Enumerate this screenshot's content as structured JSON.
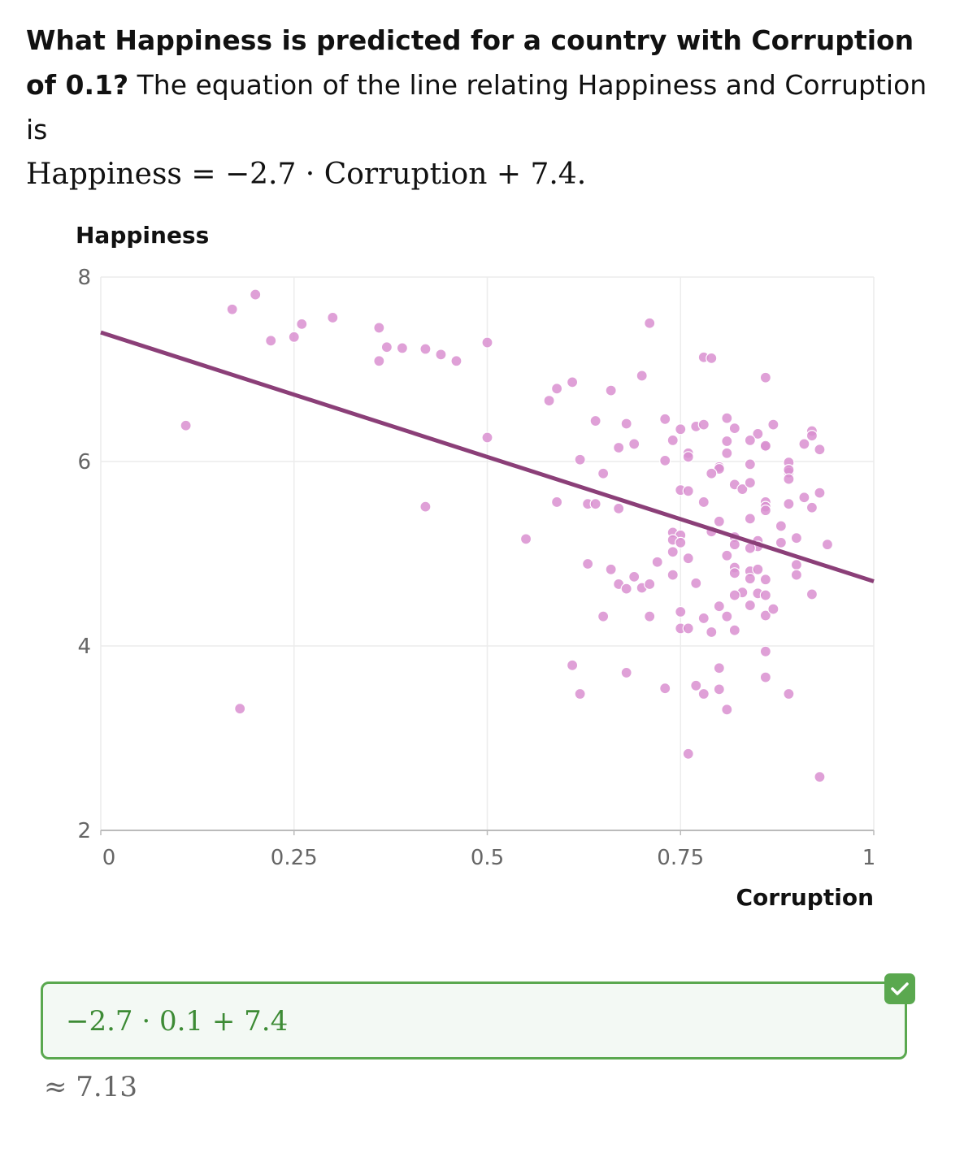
{
  "question": {
    "bold": "What Happiness is predicted for a country with Corruption of 0.1?",
    "text": " The equation of the line relating Happiness and Corruption is",
    "equation": "Happiness = −2.7 · Corruption + 7.4."
  },
  "answer": {
    "expression": "−2.7 · 0.1 + 7.4",
    "result": "≈ 7.13",
    "status": "correct",
    "status_icon": "check-icon"
  },
  "colors": {
    "points": "#d98fd0",
    "line": "#8b3f78",
    "correct": "#5aa84f"
  },
  "chart_data": {
    "type": "scatter",
    "xlabel": "Corruption",
    "ylabel": "Happiness",
    "xlim": [
      0,
      1
    ],
    "ylim": [
      2,
      8
    ],
    "x_ticks": [
      "0",
      "0.25",
      "0.5",
      "0.75",
      "1"
    ],
    "y_ticks": [
      "2",
      "4",
      "6",
      "8"
    ],
    "grid": true,
    "regression_line": {
      "slope": -2.7,
      "intercept": 7.4
    },
    "points": [
      [
        0.17,
        7.65
      ],
      [
        0.2,
        7.81
      ],
      [
        0.22,
        7.31
      ],
      [
        0.25,
        7.35
      ],
      [
        0.26,
        7.49
      ],
      [
        0.3,
        7.56
      ],
      [
        0.36,
        7.45
      ],
      [
        0.37,
        7.24
      ],
      [
        0.39,
        7.23
      ],
      [
        0.36,
        7.09
      ],
      [
        0.42,
        7.22
      ],
      [
        0.44,
        7.16
      ],
      [
        0.46,
        7.09
      ],
      [
        0.5,
        7.29
      ],
      [
        0.11,
        6.39
      ],
      [
        0.5,
        6.26
      ],
      [
        0.42,
        5.51
      ],
      [
        0.55,
        5.16
      ],
      [
        0.18,
        3.32
      ],
      [
        0.71,
        7.5
      ],
      [
        0.78,
        7.13
      ],
      [
        0.79,
        7.12
      ],
      [
        0.86,
        6.91
      ],
      [
        0.7,
        6.93
      ],
      [
        0.61,
        6.86
      ],
      [
        0.59,
        6.79
      ],
      [
        0.58,
        6.66
      ],
      [
        0.66,
        6.77
      ],
      [
        0.64,
        6.44
      ],
      [
        0.68,
        6.41
      ],
      [
        0.73,
        6.46
      ],
      [
        0.75,
        6.35
      ],
      [
        0.77,
        6.38
      ],
      [
        0.78,
        6.4
      ],
      [
        0.81,
        6.47
      ],
      [
        0.82,
        6.36
      ],
      [
        0.85,
        6.3
      ],
      [
        0.87,
        6.4
      ],
      [
        0.92,
        6.33
      ],
      [
        0.92,
        6.28
      ],
      [
        0.91,
        6.19
      ],
      [
        0.93,
        6.13
      ],
      [
        0.74,
        6.23
      ],
      [
        0.67,
        6.15
      ],
      [
        0.69,
        6.19
      ],
      [
        0.76,
        6.09
      ],
      [
        0.76,
        6.05
      ],
      [
        0.81,
        6.22
      ],
      [
        0.81,
        6.09
      ],
      [
        0.84,
        6.23
      ],
      [
        0.86,
        6.16
      ],
      [
        0.86,
        6.17
      ],
      [
        0.62,
        6.02
      ],
      [
        0.73,
        6.01
      ],
      [
        0.8,
        5.94
      ],
      [
        0.8,
        5.92
      ],
      [
        0.84,
        5.97
      ],
      [
        0.89,
        5.99
      ],
      [
        0.89,
        5.88
      ],
      [
        0.89,
        5.91
      ],
      [
        0.89,
        5.81
      ],
      [
        0.65,
        5.87
      ],
      [
        0.79,
        5.87
      ],
      [
        0.82,
        5.75
      ],
      [
        0.83,
        5.7
      ],
      [
        0.84,
        5.77
      ],
      [
        0.75,
        5.69
      ],
      [
        0.76,
        5.68
      ],
      [
        0.78,
        5.56
      ],
      [
        0.86,
        5.56
      ],
      [
        0.86,
        5.51
      ],
      [
        0.86,
        5.47
      ],
      [
        0.89,
        5.54
      ],
      [
        0.91,
        5.61
      ],
      [
        0.92,
        5.5
      ],
      [
        0.93,
        5.66
      ],
      [
        0.59,
        5.56
      ],
      [
        0.63,
        5.54
      ],
      [
        0.64,
        5.54
      ],
      [
        0.67,
        5.49
      ],
      [
        0.8,
        5.35
      ],
      [
        0.84,
        5.38
      ],
      [
        0.88,
        5.3
      ],
      [
        0.74,
        5.23
      ],
      [
        0.75,
        5.2
      ],
      [
        0.74,
        5.15
      ],
      [
        0.75,
        5.12
      ],
      [
        0.79,
        5.24
      ],
      [
        0.82,
        5.18
      ],
      [
        0.85,
        5.14
      ],
      [
        0.88,
        5.12
      ],
      [
        0.9,
        5.17
      ],
      [
        0.94,
        5.1
      ],
      [
        0.82,
        5.1
      ],
      [
        0.85,
        5.08
      ],
      [
        0.84,
        5.06
      ],
      [
        0.63,
        4.89
      ],
      [
        0.66,
        4.83
      ],
      [
        0.72,
        4.91
      ],
      [
        0.74,
        5.02
      ],
      [
        0.76,
        4.95
      ],
      [
        0.81,
        4.98
      ],
      [
        0.82,
        4.85
      ],
      [
        0.82,
        4.79
      ],
      [
        0.84,
        4.81
      ],
      [
        0.84,
        4.73
      ],
      [
        0.85,
        4.83
      ],
      [
        0.86,
        4.72
      ],
      [
        0.9,
        4.88
      ],
      [
        0.9,
        4.77
      ],
      [
        0.69,
        4.75
      ],
      [
        0.74,
        4.77
      ],
      [
        0.67,
        4.67
      ],
      [
        0.68,
        4.62
      ],
      [
        0.7,
        4.63
      ],
      [
        0.71,
        4.67
      ],
      [
        0.77,
        4.68
      ],
      [
        0.83,
        4.58
      ],
      [
        0.82,
        4.55
      ],
      [
        0.85,
        4.57
      ],
      [
        0.86,
        4.55
      ],
      [
        0.92,
        4.56
      ],
      [
        0.65,
        4.32
      ],
      [
        0.71,
        4.32
      ],
      [
        0.75,
        4.37
      ],
      [
        0.78,
        4.3
      ],
      [
        0.8,
        4.43
      ],
      [
        0.81,
        4.32
      ],
      [
        0.84,
        4.44
      ],
      [
        0.86,
        4.33
      ],
      [
        0.87,
        4.4
      ],
      [
        0.75,
        4.19
      ],
      [
        0.76,
        4.19
      ],
      [
        0.79,
        4.15
      ],
      [
        0.82,
        4.17
      ],
      [
        0.86,
        3.94
      ],
      [
        0.61,
        3.79
      ],
      [
        0.68,
        3.71
      ],
      [
        0.8,
        3.76
      ],
      [
        0.62,
        3.48
      ],
      [
        0.73,
        3.54
      ],
      [
        0.77,
        3.57
      ],
      [
        0.78,
        3.48
      ],
      [
        0.8,
        3.53
      ],
      [
        0.86,
        3.66
      ],
      [
        0.89,
        3.48
      ],
      [
        0.81,
        3.31
      ],
      [
        0.76,
        2.83
      ],
      [
        0.93,
        2.58
      ]
    ]
  }
}
